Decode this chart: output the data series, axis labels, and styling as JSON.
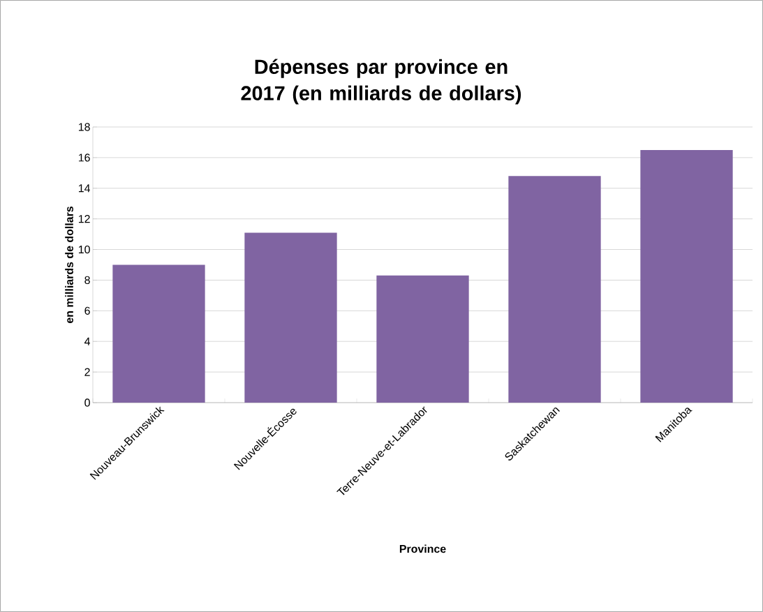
{
  "chart_data": {
    "type": "bar",
    "title": "Dépenses par province en 2017 (en milliards de dollars)",
    "xlabel": "Province",
    "ylabel": "en milliards de dollars",
    "categories": [
      "Nouveau-Brunswick",
      "Nouvelle-Écosse",
      "Terre-Neuve-et-Labrador",
      "Saskatchewan",
      "Manitoba"
    ],
    "values": [
      9.0,
      11.1,
      8.3,
      14.8,
      16.5
    ],
    "color": "#8064a2",
    "ylim": [
      0,
      18
    ],
    "yticks": [
      0,
      2,
      4,
      6,
      8,
      10,
      12,
      14,
      16,
      18
    ],
    "grid": "y"
  }
}
